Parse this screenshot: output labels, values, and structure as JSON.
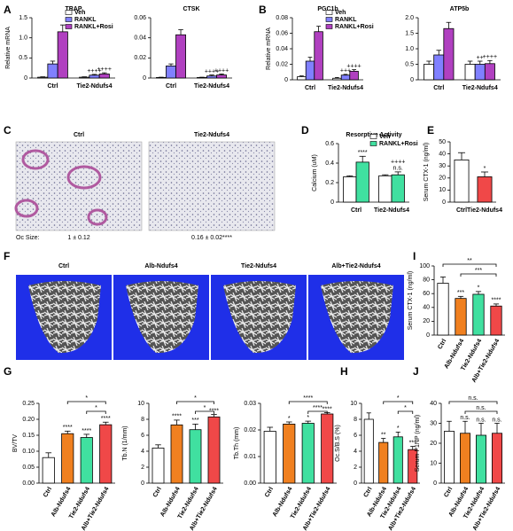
{
  "panels": {
    "labels": [
      "A",
      "B",
      "C",
      "D",
      "E",
      "F",
      "G",
      "H",
      "I",
      "J"
    ]
  },
  "panel_c": {
    "images": [
      "Ctrl",
      "Tie2-Ndufs4"
    ],
    "row_label": "Oc Size:",
    "values": [
      "1 ± 0.12",
      "0.16 ± 0.02****"
    ]
  },
  "panel_f": {
    "images": [
      "Ctrl",
      "Alb-Ndufs4",
      "Tie2-Ndufs4",
      "Alb+Tie2-Ndufs4"
    ]
  },
  "chart_data": [
    {
      "type": "bar",
      "title": "TRAP",
      "y_label": "Relative mRNA",
      "categories": [
        "Ctrl",
        "Tie2-Ndufs4"
      ],
      "series": [
        {
          "name": "Veh",
          "color": "#ffffff",
          "values": [
            0.02,
            0.02
          ],
          "errors": [
            0.01,
            0.01
          ],
          "annotations": [
            null,
            null
          ]
        },
        {
          "name": "RANKL",
          "color": "#8080ff",
          "values": [
            0.35,
            0.07
          ],
          "errors": [
            0.07,
            0.02
          ],
          "annotations": [
            null,
            "++++"
          ]
        },
        {
          "name": "RANKL+Rosi",
          "color": "#b040c0",
          "values": [
            1.15,
            0.1
          ],
          "errors": [
            0.17,
            0.03
          ],
          "annotations": [
            null,
            "++++"
          ]
        }
      ],
      "ylim": [
        0,
        1.5
      ],
      "yticks": [
        0,
        0.5,
        {
          "value": 1,
          "label": "1.0"
        },
        1.5
      ]
    },
    {
      "type": "bar",
      "title": "CTSK",
      "categories": [
        "Ctrl",
        "Tie2-Ndufs4"
      ],
      "series": [
        {
          "color": "#ffffff",
          "values": [
            0.0005,
            0.0005
          ],
          "errors": [
            0.0003,
            0.0003
          ],
          "annotations": [
            null,
            null
          ]
        },
        {
          "color": "#8080ff",
          "values": [
            0.012,
            0.002
          ],
          "errors": [
            0.002,
            0.001
          ],
          "annotations": [
            null,
            "++++"
          ]
        },
        {
          "color": "#b040c0",
          "values": [
            0.043,
            0.003
          ],
          "errors": [
            0.005,
            0.001
          ],
          "annotations": [
            null,
            "++++"
          ]
        }
      ],
      "ylim": [
        0,
        0.06
      ],
      "yticks": [
        0,
        0.02,
        0.04,
        0.06
      ]
    },
    {
      "type": "bar",
      "title": "PGC1b",
      "y_label": "Relative mRNA",
      "categories": [
        "Ctrl",
        "Tie2-Ndufs4"
      ],
      "series": [
        {
          "name": "Veh",
          "color": "#ffffff",
          "values": [
            0.004,
            0.002
          ],
          "errors": [
            0.001,
            0.001
          ],
          "annotations": [
            null,
            null
          ]
        },
        {
          "name": "RANKL",
          "color": "#8080ff",
          "values": [
            0.024,
            0.006
          ],
          "errors": [
            0.005,
            0.001
          ],
          "annotations": [
            null,
            "+++"
          ]
        },
        {
          "name": "RANKL+Rosi",
          "color": "#b040c0",
          "values": [
            0.062,
            0.011
          ],
          "errors": [
            0.007,
            0.002
          ],
          "annotations": [
            null,
            "++++"
          ]
        }
      ],
      "ylim": [
        0,
        0.08
      ],
      "yticks": [
        0,
        0.02,
        0.04,
        0.06,
        0.08
      ]
    },
    {
      "type": "bar",
      "title": "ATP5b",
      "categories": [
        "Ctrl",
        "Tie2-Ndufs4"
      ],
      "series": [
        {
          "color": "#ffffff",
          "values": [
            0.5,
            0.5
          ],
          "errors": [
            0.1,
            0.1
          ],
          "annotations": [
            null,
            null
          ]
        },
        {
          "color": "#8080ff",
          "values": [
            0.8,
            0.5
          ],
          "errors": [
            0.15,
            0.1
          ],
          "annotations": [
            null,
            "++"
          ]
        },
        {
          "color": "#b040c0",
          "values": [
            1.65,
            0.52
          ],
          "errors": [
            0.2,
            0.1
          ],
          "annotations": [
            null,
            "++++"
          ]
        }
      ],
      "ylim": [
        0,
        2
      ],
      "yticks": [
        0,
        0.5,
        {
          "value": 1,
          "label": "1.0"
        },
        1.5,
        {
          "value": 2,
          "label": "2.0"
        }
      ]
    },
    {
      "type": "bar",
      "title": "Resorptive Activity",
      "y_label": "Calcium (uM)",
      "categories": [
        "Ctrl",
        "Tie2-Ndufs4"
      ],
      "series": [
        {
          "name": "Veh",
          "color": "#ffffff",
          "values": [
            0.26,
            0.27
          ],
          "errors": [
            0.01,
            0.01
          ],
          "annotations": [
            null,
            null
          ]
        },
        {
          "name": "RANKL+Rosi",
          "color": "#40e0a0",
          "values": [
            0.41,
            0.28
          ],
          "errors": [
            0.06,
            0.03
          ],
          "annotations": [
            "****",
            [
              "++++",
              "n.s."
            ]
          ]
        }
      ],
      "ylim": [
        0,
        0.6
      ],
      "yticks": [
        0,
        0.2,
        0.4,
        0.6
      ]
    },
    {
      "type": "bar",
      "y_label": "Serum CTX-1 (ng/ml)",
      "categories": [
        "Ctrl",
        "Tie2-Ndufs4"
      ],
      "values": [
        35,
        21
      ],
      "errors": [
        6,
        4
      ],
      "colors": [
        "#ffffff",
        "#f04848"
      ],
      "annotations": [
        null,
        "*"
      ],
      "ylim": [
        0,
        50
      ],
      "yticks": [
        0,
        10,
        20,
        30,
        40,
        50
      ]
    },
    {
      "type": "bar",
      "y_label": "Serum CTX-1 (ng/ml)",
      "categories": [
        "Ctrl",
        "Alb-Ndufs4",
        "Tie2-Ndufs4",
        "Alb+Tie2-Ndufs4"
      ],
      "values": [
        75,
        53,
        59,
        42
      ],
      "errors": [
        9,
        3,
        4,
        3
      ],
      "colors": [
        "#ffffff",
        "#f08020",
        "#40e0a0",
        "#f04848"
      ],
      "annotations": [
        null,
        "***",
        "*",
        "****"
      ],
      "brackets": [
        "**",
        "***"
      ],
      "ylim": [
        0,
        100
      ],
      "yticks": [
        0,
        20,
        40,
        60,
        80,
        100
      ]
    },
    {
      "type": "bar",
      "y_label": "BV/TV",
      "categories": [
        "Ctrl",
        "Alb-Ndufs4",
        "Tie2-Ndufs4",
        "Alb+Tie2-Ndufs4"
      ],
      "values": [
        0.08,
        0.155,
        0.143,
        0.183
      ],
      "errors": [
        0.015,
        0.008,
        0.01,
        0.008
      ],
      "colors": [
        "#ffffff",
        "#f08020",
        "#40e0a0",
        "#f04848"
      ],
      "annotations": [
        null,
        "****",
        "****",
        "****"
      ],
      "brackets": [
        "*",
        "*"
      ],
      "ylim": [
        0,
        0.25
      ],
      "yticks": [
        {
          "value": 0,
          "label": "0.00"
        },
        0.05,
        {
          "value": 0.1,
          "label": "0.10"
        },
        0.15,
        {
          "value": 0.2,
          "label": "0.20"
        },
        0.25
      ]
    },
    {
      "type": "bar",
      "y_label": "Tb.N (1/mm)",
      "categories": [
        "Ctrl",
        "Alb-Ndufs4",
        "Tie2-Ndufs4",
        "Alb+Tie2-Ndufs4"
      ],
      "values": [
        4.4,
        7.3,
        6.7,
        8.3
      ],
      "errors": [
        0.4,
        0.6,
        0.7,
        0.3
      ],
      "colors": [
        "#ffffff",
        "#f08020",
        "#40e0a0",
        "#f04848"
      ],
      "annotations": [
        null,
        "****",
        "***",
        "****"
      ],
      "brackets": [
        "*",
        "*"
      ],
      "ylim": [
        0,
        10
      ],
      "yticks": [
        0,
        2,
        4,
        6,
        8,
        10
      ]
    },
    {
      "type": "bar",
      "y_label": "Tb.Th (mm)",
      "categories": [
        "Ctrl",
        "Alb-Ndufs4",
        "Tie2-Ndufs4",
        "Alb+Tie2-Ndufs4"
      ],
      "values": [
        0.0195,
        0.0222,
        0.0225,
        0.026
      ],
      "errors": [
        0.0015,
        0.0008,
        0.0008,
        0.0005
      ],
      "colors": [
        "#ffffff",
        "#f08020",
        "#40e0a0",
        "#f04848"
      ],
      "annotations": [
        null,
        "*",
        "*",
        "****"
      ],
      "brackets": [
        "****",
        "****"
      ],
      "ylim": [
        0,
        0.03
      ],
      "yticks": [
        {
          "value": 0,
          "label": "0.00"
        },
        0.01,
        0.02,
        0.03
      ]
    },
    {
      "type": "bar",
      "y_label": "Oc.S/B.S (%)",
      "categories": [
        "Ctrl",
        "Alb-Ndufs4",
        "Tie2-Ndufs4",
        "Alb+Tie2-Ndufs4"
      ],
      "values": [
        8,
        5.1,
        5.8,
        4.2
      ],
      "errors": [
        0.8,
        0.5,
        0.6,
        0.4
      ],
      "colors": [
        "#ffffff",
        "#f08020",
        "#40e0a0",
        "#f04848"
      ],
      "annotations": [
        null,
        "**",
        "*",
        "***"
      ],
      "brackets": [
        "*",
        "*"
      ],
      "ylim": [
        0,
        10
      ],
      "yticks": [
        0,
        2,
        4,
        6,
        8,
        10
      ]
    },
    {
      "type": "bar",
      "y_label": "Serum P1NP (ng/ml)",
      "categories": [
        "Ctrl",
        "Alb-Ndufs4",
        "Tie2-Ndufs4",
        "Alb+Tie2-Ndufs4"
      ],
      "values": [
        26,
        25,
        24,
        25
      ],
      "errors": [
        5,
        6,
        6,
        5
      ],
      "colors": [
        "#ffffff",
        "#f08020",
        "#40e0a0",
        "#f04848"
      ],
      "annotations": [
        null,
        "n.s.",
        "n.s.",
        "n.s."
      ],
      "brackets": [
        "n.s.",
        "n.s."
      ],
      "ylim": [
        0,
        40
      ],
      "yticks": [
        0,
        10,
        20,
        30,
        40
      ]
    }
  ]
}
